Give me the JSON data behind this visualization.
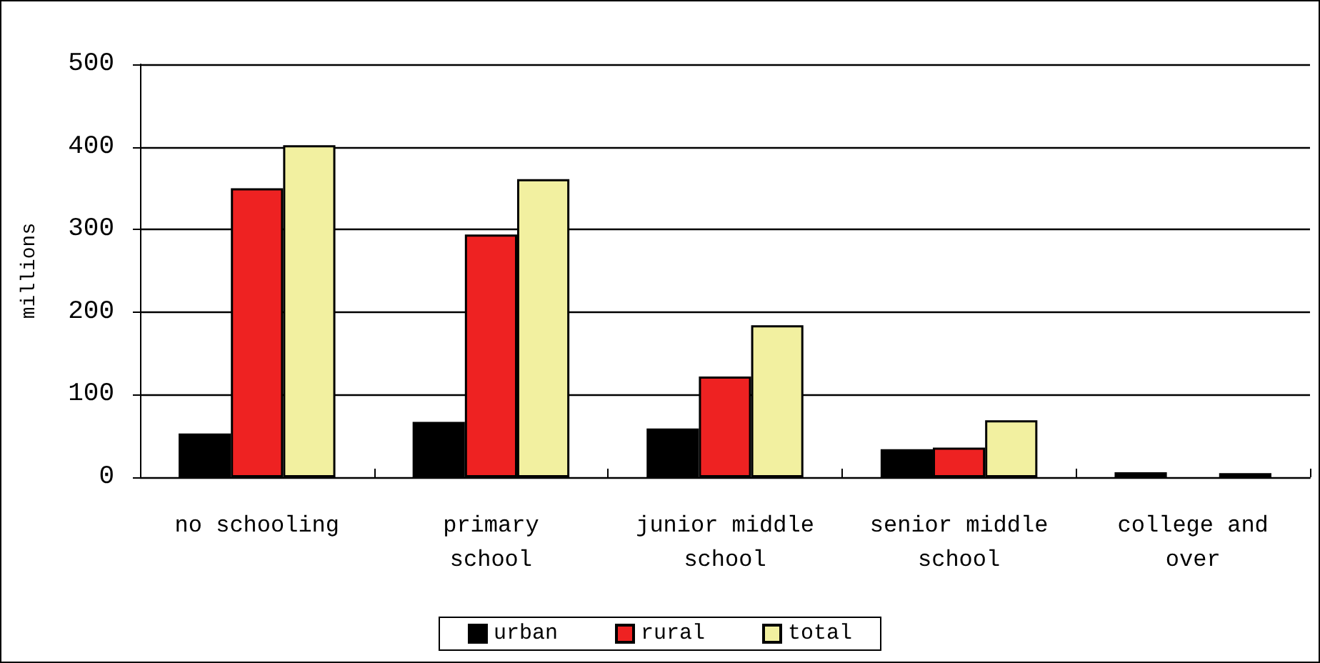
{
  "chart_data": {
    "type": "bar",
    "ylabel": "millions",
    "categories": [
      "no schooling",
      "primary\nschool",
      "junior middle\nschool",
      "senior middle\nschool",
      "college and\nover"
    ],
    "series": [
      {
        "name": "urban",
        "color": "#000000",
        "values": [
          53,
          67,
          59,
          34,
          6
        ]
      },
      {
        "name": "rural",
        "color": "#ee2222",
        "values": [
          350,
          294,
          122,
          36,
          null
        ]
      },
      {
        "name": "total",
        "color": "#f2f0a0",
        "values": [
          402,
          361,
          184,
          69,
          5
        ]
      }
    ],
    "ylim": [
      0,
      500
    ],
    "yticks": [
      0,
      100,
      200,
      300,
      400,
      500
    ],
    "grid": "y",
    "legend": "bottom"
  }
}
